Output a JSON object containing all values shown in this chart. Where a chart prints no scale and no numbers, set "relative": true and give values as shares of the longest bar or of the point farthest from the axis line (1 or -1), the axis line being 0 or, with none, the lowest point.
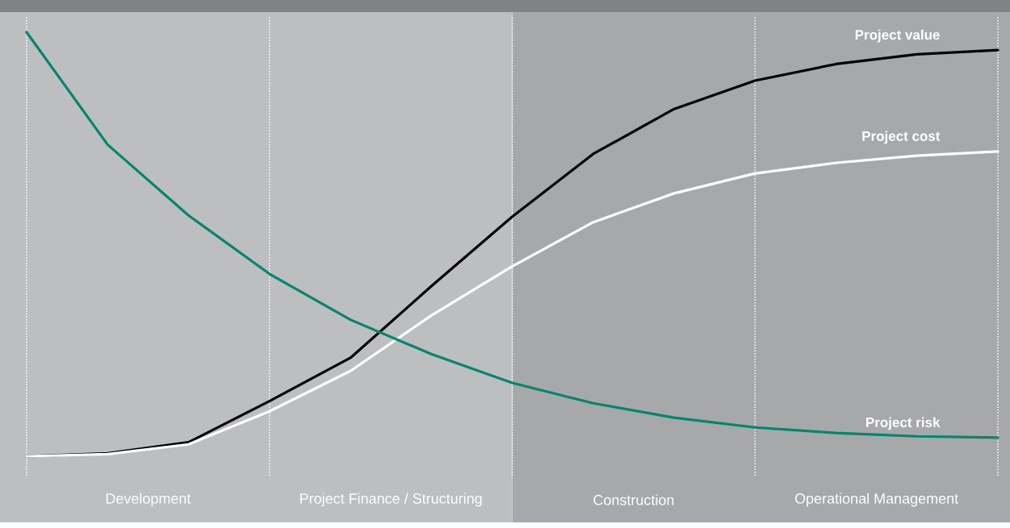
{
  "chart_data": {
    "type": "line",
    "relative": true,
    "grid": "x",
    "categories": [
      null,
      null,
      null,
      null,
      null,
      null,
      null,
      null,
      null,
      null,
      null,
      null,
      null
    ],
    "annotations": [
      "Development",
      "Project Finance / Structuring",
      "Construction",
      "Operational Management"
    ],
    "series": [
      {
        "name": "Project value",
        "color": "#000000",
        "values": [
          0,
          0.007,
          0.033,
          0.13,
          0.232,
          0.401,
          0.565,
          0.713,
          0.819,
          0.886,
          0.925,
          0.948,
          0.958
        ]
      },
      {
        "name": "Project cost",
        "color": "#ffffff",
        "values": [
          0,
          0.005,
          0.028,
          0.106,
          0.201,
          0.332,
          0.448,
          0.552,
          0.62,
          0.667,
          0.692,
          0.709,
          0.719
        ]
      },
      {
        "name": "Project risk",
        "color": "#00876c",
        "values": [
          1,
          0.735,
          0.568,
          0.43,
          0.322,
          0.241,
          0.173,
          0.125,
          0.091,
          0.068,
          0.055,
          0.047,
          0.044
        ]
      }
    ]
  }
}
